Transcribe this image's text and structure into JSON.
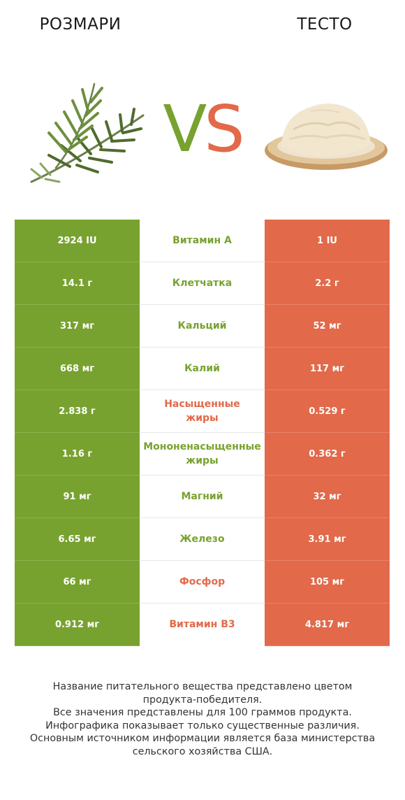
{
  "header": {
    "left_food": "РОЗМАРИ",
    "right_food": "ТЕСТО",
    "vs_v": "V",
    "vs_s": "S"
  },
  "colors": {
    "left_winner": "#78a22f",
    "right_winner": "#e2694a"
  },
  "rows": [
    {
      "left": "2924 IU",
      "nutrient": [
        "Витамин A"
      ],
      "right": "1 IU",
      "winner": "left"
    },
    {
      "left": "14.1 г",
      "nutrient": [
        "Клетчатка"
      ],
      "right": "2.2 г",
      "winner": "left"
    },
    {
      "left": "317 мг",
      "nutrient": [
        "Кальций"
      ],
      "right": "52 мг",
      "winner": "left"
    },
    {
      "left": "668 мг",
      "nutrient": [
        "Калий"
      ],
      "right": "117 мг",
      "winner": "left"
    },
    {
      "left": "2.838 г",
      "nutrient": [
        "Насыщенные",
        "жиры"
      ],
      "right": "0.529 г",
      "winner": "right"
    },
    {
      "left": "1.16 г",
      "nutrient": [
        "Мононенасыщенные",
        "жиры"
      ],
      "right": "0.362 г",
      "winner": "left"
    },
    {
      "left": "91 мг",
      "nutrient": [
        "Магний"
      ],
      "right": "32 мг",
      "winner": "left"
    },
    {
      "left": "6.65 мг",
      "nutrient": [
        "Железо"
      ],
      "right": "3.91 мг",
      "winner": "left"
    },
    {
      "left": "66 мг",
      "nutrient": [
        "Фосфор"
      ],
      "right": "105 мг",
      "winner": "right"
    },
    {
      "left": "0.912 мг",
      "nutrient": [
        "Витамин B3"
      ],
      "right": "4.817 мг",
      "winner": "right"
    }
  ],
  "footer": [
    "Название питательного вещества представлено цветом",
    "продукта-победителя.",
    "Все значения представлены для 100 граммов продукта.",
    "Инфографика показывает только существенные различия.",
    "Основным источником информации является база министерства",
    "сельского хозяйства США."
  ]
}
